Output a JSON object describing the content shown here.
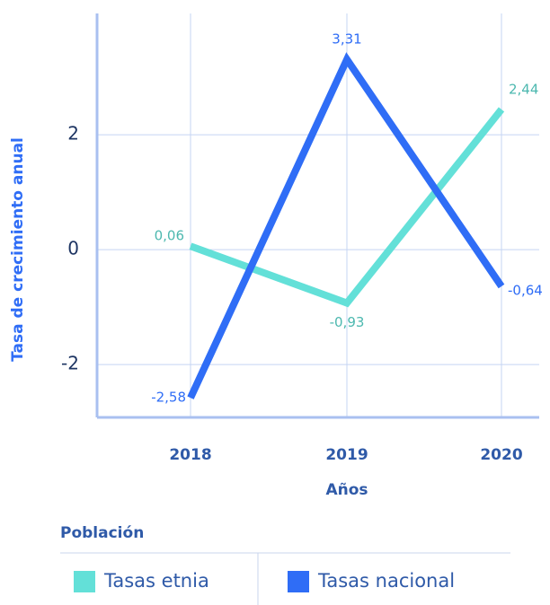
{
  "chart_data": {
    "type": "line",
    "categories": [
      "2018",
      "2019",
      "2020"
    ],
    "series": [
      {
        "name": "Tasas etnia",
        "color": "#63e0d8",
        "values": [
          0.06,
          -0.93,
          2.44
        ],
        "value_labels": [
          "0,06",
          "-0,93",
          "2,44"
        ]
      },
      {
        "name": "Tasas nacional",
        "color": "#2f6df6",
        "values": [
          -2.58,
          3.31,
          -0.64
        ],
        "value_labels": [
          "-2,58",
          "3,31",
          "-0,64"
        ]
      }
    ],
    "x_label": "Años",
    "y_label": "Tasa de crecimiento anual",
    "legend_title": "Población",
    "ylim": [
      -2.92,
      4.11
    ],
    "yticks": [
      -2,
      0,
      2
    ],
    "grid": true
  }
}
